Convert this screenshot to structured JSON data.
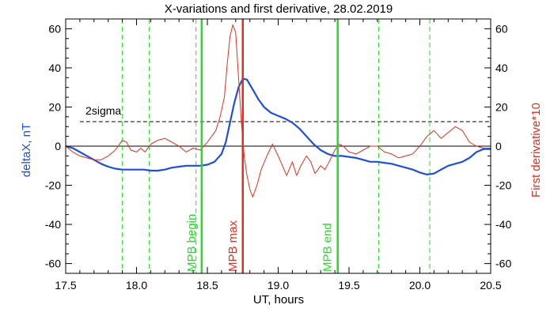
{
  "chart_data": {
    "type": "line",
    "title": "X-variations and first derivative, 28.02.2019",
    "xlabel": "UT, hours",
    "ylabel_left": "deltaX, nT",
    "ylabel_right": "First derivative*10",
    "xlim": [
      17.5,
      20.5
    ],
    "ylim": [
      -65,
      65
    ],
    "x_ticks": [
      {
        "v": 17.5,
        "label": "17.5"
      },
      {
        "v": 18.0,
        "label": "18.0"
      },
      {
        "v": 18.5,
        "label": "18.5"
      },
      {
        "v": 19.0,
        "label": "19.0"
      },
      {
        "v": 19.5,
        "label": "19.5"
      },
      {
        "v": 20.0,
        "label": "20.0"
      },
      {
        "v": 20.5,
        "label": "20.5"
      }
    ],
    "y_ticks": [
      {
        "v": 60,
        "label": "60"
      },
      {
        "v": 40,
        "label": "40"
      },
      {
        "v": 20,
        "label": "20"
      },
      {
        "v": 0,
        "label": "0"
      },
      {
        "v": -20,
        "label": "-20"
      },
      {
        "v": -40,
        "label": "-40"
      },
      {
        "v": -60,
        "label": "-60"
      }
    ],
    "colors": {
      "deltaX": "#1f4fd8",
      "derivative": "#e03020",
      "mpb_lines": "#22dd22",
      "max_line": "#e03020",
      "dashed_vertical": "#22dd22",
      "text": "#000000"
    },
    "sigma": {
      "label": "2sigma",
      "y": 12.5
    },
    "vertical_lines": [
      {
        "x": 18.46,
        "label": "MPB begin",
        "color": "#22dd22"
      },
      {
        "x": 18.75,
        "label": "MPB max",
        "color": "#e03020"
      },
      {
        "x": 19.42,
        "label": "MPB end",
        "color": "#22dd22"
      }
    ],
    "dashed_verticals": [
      17.9,
      18.09,
      18.42,
      19.71,
      20.07
    ],
    "series": [
      {
        "key": "deltaX",
        "x": [
          17.5,
          17.55,
          17.6,
          17.65,
          17.7,
          17.75,
          17.8,
          17.85,
          17.9,
          17.95,
          18.0,
          18.05,
          18.1,
          18.15,
          18.2,
          18.25,
          18.3,
          18.35,
          18.4,
          18.45,
          18.5,
          18.55,
          18.6,
          18.63,
          18.66,
          18.69,
          18.72,
          18.75,
          18.78,
          18.82,
          18.86,
          18.9,
          18.95,
          19.0,
          19.05,
          19.1,
          19.15,
          19.2,
          19.25,
          19.3,
          19.35,
          19.4,
          19.45,
          19.5,
          19.55,
          19.6,
          19.65,
          19.7,
          19.75,
          19.8,
          19.85,
          19.9,
          19.95,
          20.0,
          20.05,
          20.1,
          20.15,
          20.2,
          20.25,
          20.3,
          20.35,
          20.4,
          20.45,
          20.5
        ],
        "y": [
          0,
          -1,
          -3,
          -5,
          -7,
          -9,
          -10.5,
          -11.5,
          -12,
          -12,
          -12,
          -12,
          -12.5,
          -12.5,
          -12,
          -11,
          -10.5,
          -10,
          -10,
          -10,
          -9.5,
          -8,
          -4,
          2,
          12,
          22,
          30,
          34.5,
          34,
          29,
          24,
          20,
          17,
          15.5,
          14,
          12,
          9,
          5,
          1,
          -2,
          -4,
          -5,
          -5,
          -5.5,
          -6,
          -7,
          -8,
          -8,
          -8.5,
          -9,
          -10,
          -11,
          -12,
          -13.5,
          -14.5,
          -14,
          -12,
          -10,
          -9,
          -8,
          -6,
          -3,
          -1.5,
          -1.5
        ]
      },
      {
        "key": "derivative",
        "x": [
          17.5,
          17.55,
          17.6,
          17.65,
          17.7,
          17.75,
          17.8,
          17.85,
          17.9,
          17.93,
          17.96,
          18.0,
          18.03,
          18.06,
          18.1,
          18.15,
          18.2,
          18.25,
          18.3,
          18.35,
          18.4,
          18.45,
          18.5,
          18.53,
          18.56,
          18.59,
          18.62,
          18.64,
          18.66,
          18.68,
          18.7,
          18.72,
          18.74,
          18.76,
          18.78,
          18.8,
          18.82,
          18.85,
          18.88,
          18.92,
          18.96,
          19.0,
          19.03,
          19.06,
          19.1,
          19.13,
          19.16,
          19.2,
          19.23,
          19.26,
          19.3,
          19.33,
          19.36,
          19.4,
          19.43,
          19.46,
          19.5,
          19.55,
          19.6,
          19.65,
          19.7,
          19.75,
          19.8,
          19.85,
          19.9,
          19.95,
          20.0,
          20.05,
          20.1,
          20.15,
          20.2,
          20.25,
          20.3,
          20.35,
          20.4,
          20.45,
          20.5
        ],
        "y": [
          0,
          -3,
          -5,
          -6,
          -7,
          -7,
          -5,
          -2,
          3,
          2,
          -2,
          -3,
          -1,
          -3,
          1,
          3,
          4,
          2,
          0,
          -3,
          -1,
          -2,
          2,
          5,
          8,
          15,
          25,
          42,
          56,
          62,
          58,
          35,
          12,
          -5,
          -15,
          -22,
          -26,
          -20,
          -12,
          -5,
          1,
          -5,
          -10,
          -15,
          -8,
          -15,
          -10,
          -5,
          -8,
          -14,
          -10,
          -12,
          -8,
          -2,
          1,
          0,
          -3,
          -4,
          -2,
          0,
          0,
          -3,
          -4,
          -6,
          -5,
          -4,
          0,
          5,
          8,
          4,
          7,
          10,
          8,
          2,
          0,
          -1,
          -1
        ]
      }
    ]
  }
}
